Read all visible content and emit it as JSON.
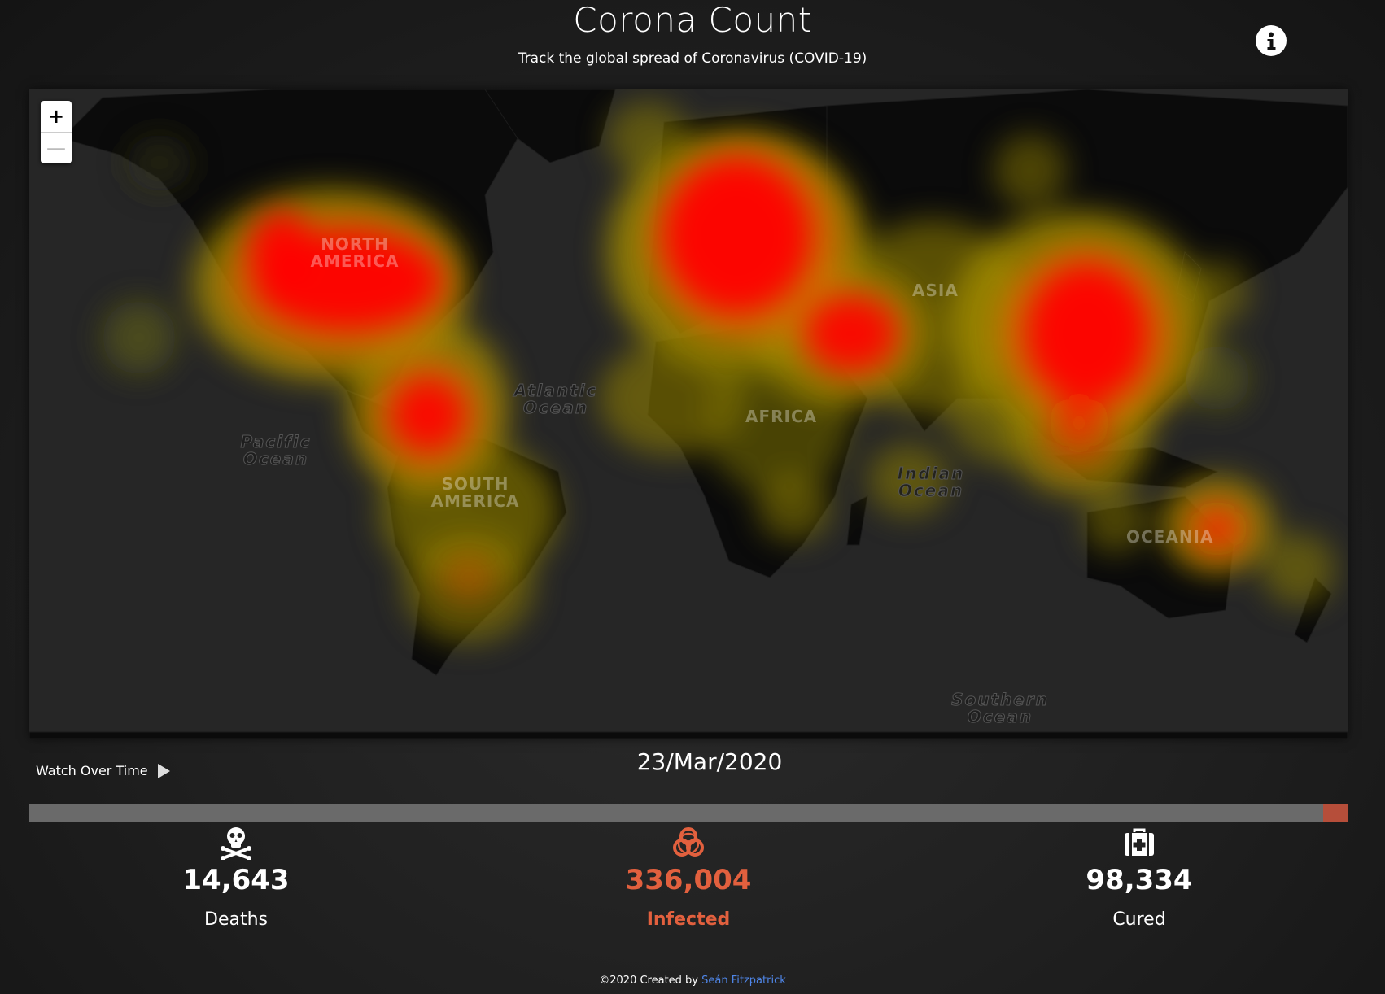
{
  "header": {
    "title": "Corona Count",
    "subtitle": "Track the global spread of Coronavirus (COVID-19)"
  },
  "map": {
    "zoom_in": "+",
    "zoom_out": "—",
    "continents": [
      "NORTH AMERICA",
      "SOUTH AMERICA",
      "AFRICA",
      "ASIA",
      "OCEANIA"
    ],
    "oceans": [
      "Atlantic Ocean",
      "Pacific Ocean",
      "Indian Ocean",
      "Southern Ocean"
    ],
    "heat_colors": {
      "low": "#7a7a1e",
      "mid": "#c2a200",
      "high": "#ff0000"
    }
  },
  "timeline": {
    "watch_label": "Watch Over Time",
    "date": "23/Mar/2020",
    "progress": 1.0,
    "track_color": "#6a6a6a",
    "handle_color": "#b64e3a"
  },
  "stats": {
    "deaths": {
      "value": "14,643",
      "label": "Deaths",
      "icon": "skull-crossbones-icon"
    },
    "infected": {
      "value": "336,004",
      "label": "Infected",
      "icon": "biohazard-icon",
      "color": "#e2603e"
    },
    "cured": {
      "value": "98,334",
      "label": "Cured",
      "icon": "medkit-icon"
    }
  },
  "footer": {
    "prefix": "©2020 Created by",
    "author": "Seán Fitzpatrick",
    "author_color": "#4f86e8"
  }
}
